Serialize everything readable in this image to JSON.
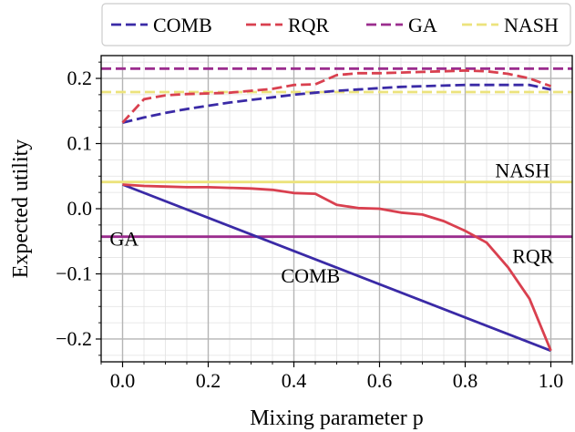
{
  "chart_data": {
    "type": "line",
    "xlabel": "Mixing parameter p",
    "ylabel": "Expected utility",
    "xlim": [
      -0.05,
      1.05
    ],
    "ylim": [
      -0.235,
      0.235
    ],
    "xticks": [
      0.0,
      0.2,
      0.4,
      0.6,
      0.8,
      1.0
    ],
    "xtick_labels": [
      "0.0",
      "0.2",
      "0.4",
      "0.6",
      "0.8",
      "1.0"
    ],
    "yticks": [
      -0.2,
      -0.1,
      0.0,
      0.1,
      0.2
    ],
    "ytick_labels": [
      "−0.2",
      "−0.1",
      "0.0",
      "0.1",
      "0.2"
    ],
    "grid": true,
    "minor_grid": true,
    "legend_position": "top",
    "legend": [
      {
        "name": "COMB",
        "color": "#3a2aa6"
      },
      {
        "name": "RQR",
        "color": "#d9404f"
      },
      {
        "name": "GA",
        "color": "#9b2d8e"
      },
      {
        "name": "NASH",
        "color": "#ece37c"
      }
    ],
    "series_dashed": [
      {
        "name": "COMB",
        "color": "#3a2aa6",
        "x": [
          0.0,
          0.05,
          0.1,
          0.15,
          0.2,
          0.25,
          0.3,
          0.35,
          0.4,
          0.45,
          0.5,
          0.55,
          0.6,
          0.65,
          0.7,
          0.75,
          0.8,
          0.85,
          0.9,
          0.95,
          1.0
        ],
        "y": [
          0.132,
          0.14,
          0.147,
          0.153,
          0.158,
          0.163,
          0.167,
          0.171,
          0.175,
          0.178,
          0.181,
          0.183,
          0.185,
          0.187,
          0.188,
          0.189,
          0.19,
          0.19,
          0.19,
          0.19,
          0.183
        ]
      },
      {
        "name": "RQR",
        "color": "#d9404f",
        "x": [
          0.0,
          0.05,
          0.1,
          0.15,
          0.2,
          0.25,
          0.3,
          0.35,
          0.4,
          0.45,
          0.5,
          0.55,
          0.6,
          0.65,
          0.7,
          0.75,
          0.8,
          0.85,
          0.9,
          0.95,
          1.0
        ],
        "y": [
          0.132,
          0.168,
          0.174,
          0.176,
          0.177,
          0.178,
          0.181,
          0.184,
          0.19,
          0.191,
          0.205,
          0.208,
          0.208,
          0.209,
          0.21,
          0.211,
          0.212,
          0.211,
          0.207,
          0.2,
          0.188
        ]
      },
      {
        "name": "GA",
        "color": "#9b2d8e",
        "x": [
          -0.05,
          1.05
        ],
        "y": [
          0.215,
          0.215
        ]
      },
      {
        "name": "NASH",
        "color": "#ece37c",
        "x": [
          -0.05,
          1.05
        ],
        "y": [
          0.179,
          0.179
        ]
      }
    ],
    "series_solid": [
      {
        "name": "COMB",
        "color": "#3a2aa6",
        "x": [
          0.0,
          1.0
        ],
        "y": [
          0.037,
          -0.218
        ]
      },
      {
        "name": "RQR",
        "color": "#d9404f",
        "x": [
          0.0,
          0.05,
          0.1,
          0.15,
          0.2,
          0.25,
          0.3,
          0.35,
          0.4,
          0.45,
          0.5,
          0.55,
          0.6,
          0.65,
          0.7,
          0.75,
          0.8,
          0.85,
          0.9,
          0.95,
          1.0
        ],
        "y": [
          0.037,
          0.035,
          0.034,
          0.033,
          0.033,
          0.032,
          0.031,
          0.029,
          0.024,
          0.023,
          0.006,
          0.001,
          0.0,
          -0.006,
          -0.009,
          -0.019,
          -0.034,
          -0.052,
          -0.09,
          -0.138,
          -0.218
        ]
      },
      {
        "name": "GA",
        "color": "#9b2d8e",
        "x": [
          -0.05,
          1.05
        ],
        "y": [
          -0.043,
          -0.043
        ]
      },
      {
        "name": "NASH",
        "color": "#ece37c",
        "x": [
          -0.05,
          1.05
        ],
        "y": [
          0.041,
          0.041
        ]
      }
    ],
    "annotations": [
      {
        "text": "NASH",
        "x": 0.87,
        "y": 0.048
      },
      {
        "text": "GA",
        "x": -0.03,
        "y": -0.057
      },
      {
        "text": "COMB",
        "x": 0.37,
        "y": -0.113
      },
      {
        "text": "RQR",
        "x": 0.91,
        "y": -0.083
      }
    ]
  }
}
